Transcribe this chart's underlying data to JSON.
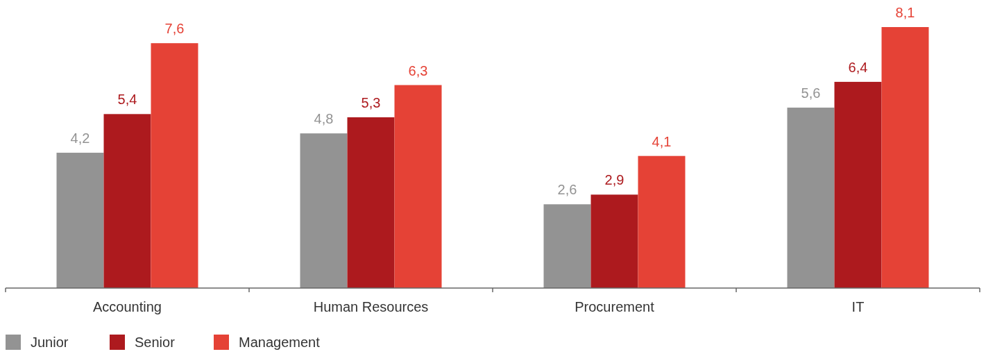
{
  "chart_data": {
    "type": "bar",
    "categories": [
      "Accounting",
      "Human Resources",
      "Procurement",
      "IT"
    ],
    "legend": "bottom left",
    "series": [
      {
        "name": "Junior",
        "color": "#939393",
        "values": [
          4.2,
          4.8,
          2.6,
          5.6
        ],
        "value_labels": [
          "4,2",
          "4,8",
          "2,6",
          "5,6"
        ]
      },
      {
        "name": "Senior",
        "color": "#ad1a1e",
        "values": [
          5.4,
          5.3,
          2.9,
          6.4
        ],
        "value_labels": [
          "5,4",
          "5,3",
          "2,9",
          "6,4"
        ]
      },
      {
        "name": "Management",
        "color": "#e54236",
        "values": [
          7.6,
          6.3,
          4.1,
          8.1
        ],
        "value_labels": [
          "7,6",
          "6,3",
          "4,1",
          "8,1"
        ]
      }
    ]
  }
}
